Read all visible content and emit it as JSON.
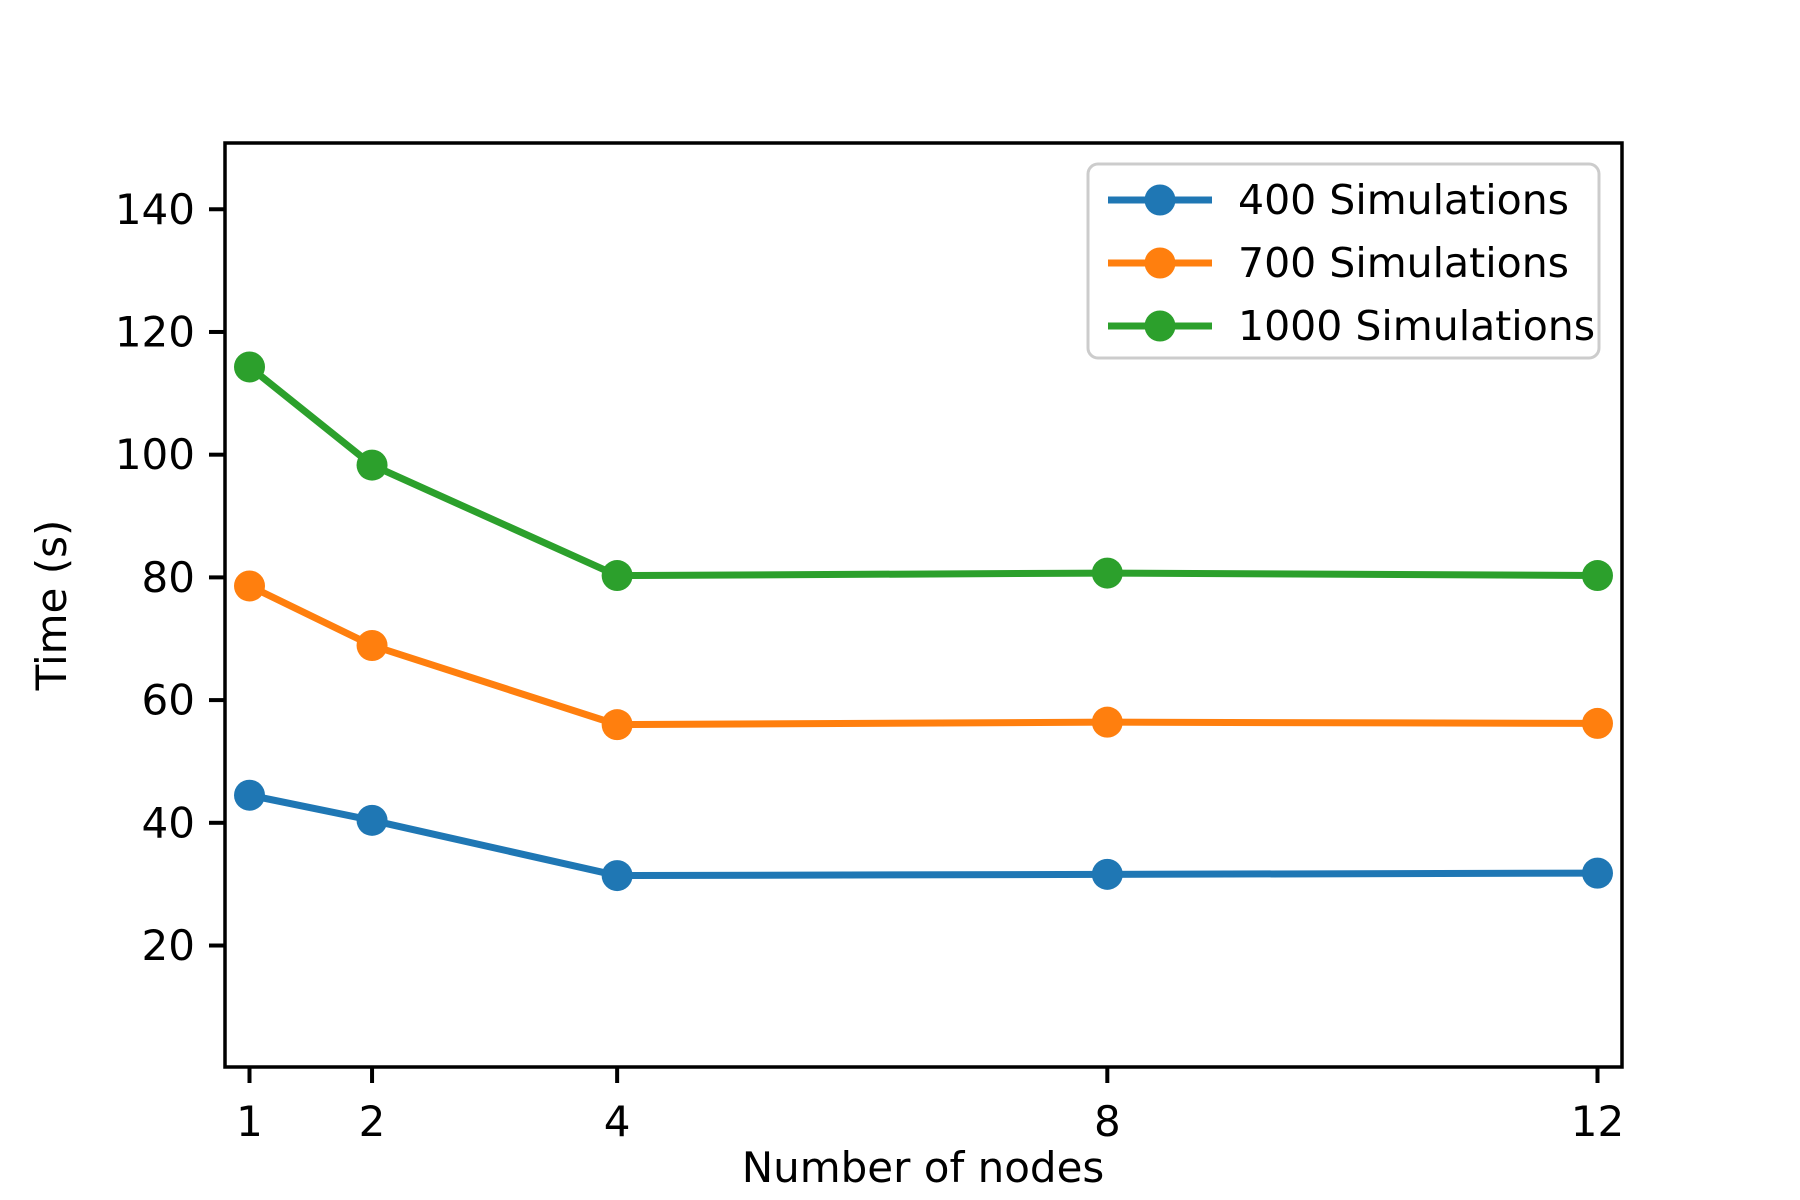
{
  "figure": {
    "background": "#ffffff",
    "axis_color": "#000000"
  },
  "chart_data": {
    "type": "line",
    "title": "",
    "xlabel": "Number of nodes",
    "ylabel": "Time (s)",
    "x": [
      1,
      2,
      4,
      8,
      12
    ],
    "series": [
      {
        "name": "400 Simulations",
        "color": "#1f77b4",
        "values": [
          44.5,
          40.4,
          31.4,
          31.6,
          31.8
        ]
      },
      {
        "name": "700 Simulations",
        "color": "#ff7f0e",
        "values": [
          78.6,
          68.9,
          56.0,
          56.4,
          56.2
        ]
      },
      {
        "name": "1000 Simulations",
        "color": "#2ca02c",
        "values": [
          114.3,
          98.3,
          80.3,
          80.7,
          80.3
        ]
      }
    ],
    "xticks": [
      "1",
      "2",
      "4",
      "8",
      "12"
    ],
    "xtick_values": [
      1,
      2,
      4,
      8,
      12
    ],
    "yticks": [
      "20",
      "40",
      "60",
      "80",
      "100",
      "120",
      "140"
    ],
    "ytick_values": [
      20,
      40,
      60,
      80,
      100,
      120,
      140
    ],
    "xlim": [
      0.8,
      12.2
    ],
    "ylim": [
      0.2,
      150.8
    ],
    "grid": false,
    "marker": "circle",
    "legend": {
      "position": "upper right",
      "border_color": "#cccccc",
      "background": "#ffffff",
      "entries": [
        "400 Simulations",
        "700 Simulations",
        "1000 Simulations"
      ]
    }
  }
}
